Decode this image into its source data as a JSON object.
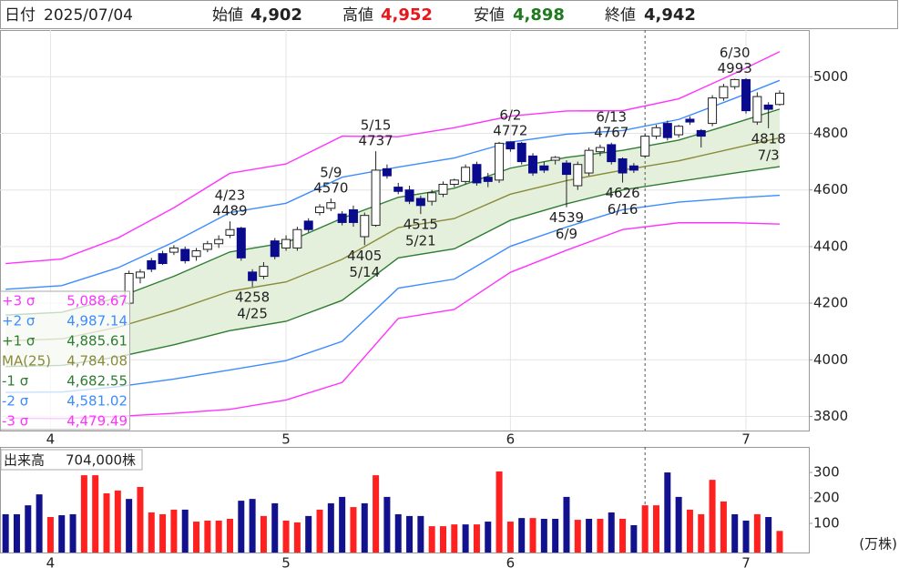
{
  "header": {
    "date_label": "日付",
    "date": "2025/07/04",
    "open_label": "始値",
    "open": "4,902",
    "high_label": "高値",
    "high": "4,952",
    "low_label": "安値",
    "low": "4,898",
    "close_label": "終値",
    "close": "4,942"
  },
  "chart_data": [
    {
      "type": "candlestick",
      "open": [
        4200,
        4290,
        4350,
        4375,
        4380,
        4390,
        4365,
        4390,
        4410,
        4440,
        4465,
        4310,
        4295,
        4420,
        4395,
        4395,
        4490,
        4520,
        4535,
        4515,
        4530,
        4435,
        4475,
        4675,
        4610,
        4600,
        4570,
        4560,
        4585,
        4620,
        4630,
        4690,
        4645,
        4635,
        4770,
        4765,
        4720,
        4685,
        4705,
        4695,
        4615,
        4660,
        4735,
        4760,
        4710,
        4685,
        4720,
        4790,
        4835,
        4795,
        4850,
        4810,
        4835,
        4925,
        4965,
        4990,
        4840,
        4900,
        4902
      ],
      "high": [
        4315,
        4320,
        4360,
        4385,
        4405,
        4400,
        4395,
        4420,
        4440,
        4489,
        4470,
        4320,
        4345,
        4430,
        4440,
        4470,
        4500,
        4550,
        4570,
        4525,
        4545,
        4520,
        4737,
        4690,
        4625,
        4615,
        4580,
        4600,
        4630,
        4640,
        4690,
        4700,
        4660,
        4770,
        4772,
        4770,
        4730,
        4700,
        4720,
        4705,
        4700,
        4750,
        4760,
        4767,
        4715,
        4695,
        4800,
        4830,
        4845,
        4830,
        4860,
        4815,
        4935,
        4975,
        4993,
        4995,
        4945,
        4910,
        4952
      ],
      "low": [
        4195,
        4270,
        4310,
        4335,
        4370,
        4340,
        4350,
        4380,
        4395,
        4430,
        4350,
        4258,
        4285,
        4355,
        4385,
        4385,
        4450,
        4510,
        4525,
        4475,
        4470,
        4405,
        4470,
        4640,
        4585,
        4550,
        4515,
        4545,
        4575,
        4610,
        4620,
        4615,
        4610,
        4625,
        4735,
        4690,
        4650,
        4660,
        4690,
        4539,
        4600,
        4650,
        4720,
        4690,
        4626,
        4660,
        4715,
        4780,
        4775,
        4785,
        4830,
        4750,
        4825,
        4915,
        4955,
        4870,
        4830,
        4818,
        4898
      ],
      "close": [
        4305,
        4310,
        4320,
        4340,
        4395,
        4350,
        4385,
        4410,
        4425,
        4460,
        4360,
        4280,
        4330,
        4365,
        4425,
        4460,
        4460,
        4540,
        4555,
        4485,
        4485,
        4510,
        4670,
        4650,
        4595,
        4560,
        4545,
        4590,
        4620,
        4635,
        4680,
        4625,
        4630,
        4765,
        4745,
        4700,
        4660,
        4670,
        4715,
        4655,
        4690,
        4740,
        4750,
        4700,
        4660,
        4670,
        4790,
        4820,
        4785,
        4825,
        4840,
        4790,
        4925,
        4965,
        4990,
        4880,
        4930,
        4885,
        4942
      ],
      "up_color": "#ffffff",
      "down_color": "#0a0a8c",
      "xlim": [
        -11.5,
        60.6
      ],
      "xticks": [
        {
          "value": -7,
          "label": "4"
        },
        {
          "value": 14,
          "label": "5"
        },
        {
          "value": 34,
          "label": "6"
        },
        {
          "value": 55,
          "label": "7"
        }
      ],
      "ylim": [
        3750,
        5165
      ],
      "yticks": [
        3800,
        4000,
        4200,
        4400,
        4600,
        4800,
        5000
      ],
      "grid": true,
      "cursor_x": 46,
      "band_fill": "#e4f0dc",
      "bands_x": [
        -11,
        -6,
        -1,
        4,
        9,
        14,
        19,
        24,
        29,
        34,
        39,
        44,
        49,
        54,
        58
      ],
      "bands": [
        {
          "name": "+3 σ",
          "color": "#ff33ff",
          "values": [
            4340,
            4356,
            4430,
            4537,
            4659,
            4692,
            4790,
            4788,
            4820,
            4861,
            4879,
            4880,
            4922,
            5012,
            5088.67
          ],
          "value_labels": [
            null,
            null,
            null,
            null,
            null,
            null,
            null,
            null,
            null,
            null,
            null,
            null,
            null,
            null,
            "5,088.67"
          ]
        },
        {
          "name": "+2 σ",
          "color": "#3c8cff",
          "values": [
            4249,
            4262,
            4325,
            4416,
            4520,
            4553,
            4645,
            4681,
            4713,
            4769,
            4797,
            4810,
            4849,
            4924,
            4987.14
          ],
          "value_labels": [
            null,
            null,
            null,
            null,
            null,
            null,
            null,
            null,
            null,
            null,
            null,
            null,
            null,
            null,
            "4,987.14"
          ]
        },
        {
          "name": "+1 σ",
          "color": "#2e7d32",
          "values": [
            4158,
            4168,
            4220,
            4295,
            4381,
            4414,
            4500,
            4574,
            4606,
            4677,
            4715,
            4740,
            4776,
            4836,
            4885.61
          ],
          "value_labels": [
            null,
            null,
            null,
            null,
            null,
            null,
            null,
            null,
            null,
            null,
            null,
            null,
            null,
            null,
            "4,885.61"
          ]
        },
        {
          "name": "MA(25)",
          "color": "#8a8a3a",
          "values": [
            4067,
            4074,
            4115,
            4174,
            4242,
            4275,
            4355,
            4467,
            4499,
            4585,
            4633,
            4670,
            4703,
            4748,
            4784.08
          ],
          "value_labels": [
            null,
            null,
            null,
            null,
            null,
            null,
            null,
            null,
            null,
            null,
            null,
            null,
            null,
            null,
            "4,784.08"
          ]
        },
        {
          "name": "-1 σ",
          "color": "#2e7d32",
          "values": [
            3976,
            3980,
            4010,
            4053,
            4103,
            4136,
            4210,
            4360,
            4392,
            4493,
            4551,
            4600,
            4630,
            4660,
            4682.55
          ],
          "value_labels": [
            null,
            null,
            null,
            null,
            null,
            null,
            null,
            null,
            null,
            null,
            null,
            null,
            null,
            null,
            "4,682.55"
          ]
        },
        {
          "name": "-2 σ",
          "color": "#3c8cff",
          "values": [
            3885,
            3886,
            3905,
            3932,
            3964,
            3997,
            4065,
            4253,
            4285,
            4401,
            4469,
            4530,
            4557,
            4572,
            4581.02
          ],
          "value_labels": [
            null,
            null,
            null,
            null,
            null,
            null,
            null,
            null,
            null,
            null,
            null,
            null,
            null,
            null,
            "4,581.02"
          ]
        },
        {
          "name": "-3 σ",
          "color": "#ff33ff",
          "values": [
            3794,
            3792,
            3800,
            3811,
            3825,
            3858,
            3920,
            4146,
            4178,
            4309,
            4387,
            4460,
            4484,
            4484,
            4479.49
          ],
          "value_labels": [
            null,
            null,
            null,
            null,
            null,
            null,
            null,
            null,
            null,
            null,
            null,
            null,
            null,
            null,
            "4,479.49"
          ]
        }
      ],
      "annotations": [
        {
          "date": "4/23",
          "value": 4489,
          "x": 9,
          "kind": "high"
        },
        {
          "date": "4/25",
          "value": 4258,
          "x": 11,
          "kind": "low"
        },
        {
          "date": "5/9",
          "value": 4570,
          "x": 18,
          "kind": "high"
        },
        {
          "date": "5/14",
          "value": 4405,
          "x": 21,
          "kind": "low"
        },
        {
          "date": "5/15",
          "value": 4737,
          "x": 22,
          "kind": "high"
        },
        {
          "date": "5/21",
          "value": 4515,
          "x": 26,
          "kind": "low"
        },
        {
          "date": "6/2",
          "value": 4772,
          "x": 34,
          "kind": "high"
        },
        {
          "date": "6/9",
          "value": 4539,
          "x": 39,
          "kind": "low"
        },
        {
          "date": "6/13",
          "value": 4767,
          "x": 43,
          "kind": "high"
        },
        {
          "date": "6/16",
          "value": 4626,
          "x": 44,
          "kind": "low"
        },
        {
          "date": "6/30",
          "value": 4993,
          "x": 54,
          "kind": "high"
        },
        {
          "date": "7/3",
          "value": 4818,
          "x": 57,
          "kind": "low"
        }
      ]
    },
    {
      "type": "bar",
      "title": "出来高",
      "subtitle": "704,000株",
      "unit_label": "(万株)",
      "values": [
        136,
        136,
        171,
        214,
        125,
        132,
        136,
        289,
        289,
        218,
        229,
        196,
        243,
        143,
        136,
        154,
        154,
        107,
        111,
        111,
        118,
        189,
        196,
        129,
        179,
        111,
        104,
        129,
        154,
        179,
        204,
        164,
        179,
        289,
        204,
        136,
        129,
        129,
        89,
        89,
        96,
        96,
        96,
        107,
        304,
        107,
        121,
        121,
        118,
        118,
        204,
        114,
        118,
        118,
        143,
        118,
        93,
        171,
        171,
        300,
        204,
        154,
        136,
        271,
        186,
        136,
        111,
        136,
        125,
        70.4
      ],
      "colors": [
        "#12128f",
        "#12128f",
        "#12128f",
        "#12128f",
        "#ff2020",
        "#12128f",
        "#12128f",
        "#ff2020",
        "#ff2020",
        "#ff2020",
        "#ff2020",
        "#12128f",
        "#ff2020",
        "#ff2020",
        "#ff2020",
        "#ff2020",
        "#12128f",
        "#ff2020",
        "#ff2020",
        "#ff2020",
        "#ff2020",
        "#12128f",
        "#12128f",
        "#ff2020",
        "#12128f",
        "#ff2020",
        "#ff2020",
        "#12128f",
        "#ff2020",
        "#12128f",
        "#12128f",
        "#ff2020",
        "#12128f",
        "#ff2020",
        "#12128f",
        "#12128f",
        "#12128f",
        "#12128f",
        "#ff2020",
        "#ff2020",
        "#ff2020",
        "#12128f",
        "#ff2020",
        "#12128f",
        "#ff2020",
        "#ff2020",
        "#12128f",
        "#ff2020",
        "#12128f",
        "#12128f",
        "#12128f",
        "#ff2020",
        "#12128f",
        "#ff2020",
        "#12128f",
        "#ff2020",
        "#12128f",
        "#ff2020",
        "#ff2020",
        "#12128f",
        "#12128f",
        "#ff2020",
        "#ff2020",
        "#ff2020",
        "#ff2020",
        "#12128f",
        "#12128f",
        "#ff2020",
        "#12128f",
        "#ff2020"
      ],
      "xlim": [
        -0.5,
        71.6
      ],
      "xticks": [
        {
          "value": 4,
          "label": "4"
        },
        {
          "value": 25,
          "label": "5"
        },
        {
          "value": 45,
          "label": "6"
        },
        {
          "value": 66,
          "label": "7"
        }
      ],
      "ylim": [
        0,
        393
      ],
      "yticks": [
        100,
        200,
        300
      ],
      "grid": false,
      "cursor_x": 57
    }
  ]
}
